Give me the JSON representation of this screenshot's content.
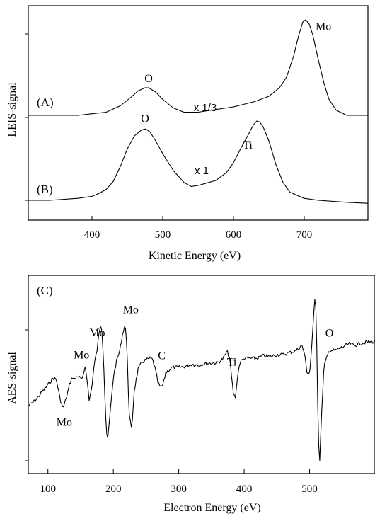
{
  "chart_data": [
    {
      "type": "line",
      "xlabel": "Kinetic Energy (eV)",
      "ylabel": "LEIS-signal",
      "xlim": [
        310,
        790
      ],
      "x_ticks": [
        400,
        500,
        600,
        700
      ],
      "grid": false,
      "legend": "none",
      "series": [
        {
          "name": "(A)",
          "scale_label": "x 1/3",
          "x": [
            310,
            340,
            380,
            420,
            440,
            455,
            465,
            475,
            480,
            490,
            500,
            515,
            530,
            550,
            570,
            600,
            630,
            650,
            665,
            675,
            685,
            692,
            698,
            702,
            707,
            712,
            720,
            728,
            735,
            745,
            760,
            780,
            790
          ],
          "y": [
            0.0,
            0.0,
            0.0,
            0.03,
            0.09,
            0.17,
            0.23,
            0.26,
            0.26,
            0.22,
            0.15,
            0.07,
            0.03,
            0.03,
            0.05,
            0.08,
            0.13,
            0.18,
            0.26,
            0.36,
            0.56,
            0.75,
            0.88,
            0.9,
            0.86,
            0.76,
            0.52,
            0.3,
            0.15,
            0.05,
            0.0,
            0.0,
            0.0
          ],
          "annotations": [
            {
              "label": "O",
              "x": 480
            },
            {
              "label": "Mo",
              "x": 704
            }
          ]
        },
        {
          "name": "(B)",
          "scale_label": "x 1",
          "x": [
            310,
            340,
            380,
            400,
            410,
            420,
            430,
            440,
            450,
            460,
            470,
            476,
            482,
            490,
            500,
            515,
            530,
            540,
            550,
            560,
            575,
            590,
            600,
            610,
            620,
            628,
            633,
            637,
            642,
            650,
            660,
            670,
            680,
            700,
            720,
            760,
            790
          ],
          "y": [
            0.0,
            0.0,
            0.02,
            0.04,
            0.07,
            0.11,
            0.19,
            0.34,
            0.52,
            0.65,
            0.71,
            0.72,
            0.69,
            0.6,
            0.47,
            0.3,
            0.18,
            0.14,
            0.15,
            0.17,
            0.2,
            0.28,
            0.38,
            0.52,
            0.65,
            0.76,
            0.8,
            0.79,
            0.74,
            0.6,
            0.36,
            0.18,
            0.08,
            0.02,
            0.0,
            -0.02,
            -0.03
          ],
          "annotations": [
            {
              "label": "O",
              "x": 475
            },
            {
              "label": "Ti",
              "x": 632
            }
          ]
        }
      ]
    },
    {
      "type": "line",
      "panel_label": "(C)",
      "xlabel": "Electron Energy (eV)",
      "ylabel": "AES-signal",
      "xlim": [
        70,
        600
      ],
      "x_ticks": [
        100,
        200,
        300,
        400,
        500
      ],
      "grid": false,
      "legend": "none",
      "series": [
        {
          "x": [
            70,
            80,
            90,
            100,
            108,
            113,
            118,
            123,
            128,
            133,
            137,
            141,
            145,
            149,
            153,
            157,
            160,
            163,
            167,
            171,
            175,
            179,
            182,
            185,
            188,
            191,
            195,
            200,
            205,
            210,
            214,
            218,
            221,
            224,
            228,
            232,
            238,
            244,
            250,
            256,
            260,
            264,
            268,
            272,
            276,
            280,
            290,
            300,
            310,
            320,
            330,
            340,
            350,
            360,
            368,
            374,
            378,
            381,
            384,
            387,
            390,
            394,
            400,
            410,
            420,
            430,
            440,
            450,
            460,
            470,
            480,
            488,
            492,
            496,
            500,
            504,
            507,
            509,
            511,
            513,
            515,
            518,
            522,
            530,
            540,
            550,
            560,
            570,
            580,
            590,
            600
          ],
          "y": [
            -0.45,
            -0.35,
            -0.2,
            -0.05,
            0.08,
            0.05,
            -0.28,
            -0.5,
            -0.3,
            -0.05,
            0.1,
            0.05,
            0.12,
            0.08,
            0.05,
            0.3,
            0.05,
            -0.35,
            -0.1,
            0.35,
            0.6,
            1.0,
            1.1,
            0.45,
            -0.6,
            -1.15,
            -0.6,
            0.1,
            0.4,
            0.6,
            0.9,
            1.1,
            0.6,
            -0.6,
            -0.9,
            -0.15,
            0.25,
            0.38,
            0.42,
            0.45,
            0.43,
            0.25,
            0.0,
            -0.1,
            -0.05,
            0.18,
            0.28,
            0.28,
            0.3,
            0.34,
            0.32,
            0.35,
            0.36,
            0.37,
            0.45,
            0.58,
            0.45,
            0.05,
            -0.25,
            -0.28,
            0.15,
            0.38,
            0.45,
            0.45,
            0.45,
            0.5,
            0.48,
            0.52,
            0.52,
            0.56,
            0.6,
            0.7,
            0.55,
            0.2,
            0.15,
            0.8,
            1.4,
            1.7,
            0.7,
            -0.8,
            -1.6,
            -0.7,
            0.3,
            0.6,
            0.6,
            0.66,
            0.72,
            0.7,
            0.74,
            0.76,
            0.76
          ],
          "annotations": [
            {
              "label": "Mo",
              "x": 125
            },
            {
              "label": "Mo",
              "x": 160
            },
            {
              "label": "Mo",
              "x": 184
            },
            {
              "label": "Mo",
              "x": 218
            },
            {
              "label": "C",
              "x": 274
            },
            {
              "label": "Ti",
              "x": 381
            },
            {
              "label": "O",
              "x": 511
            }
          ]
        }
      ]
    }
  ]
}
